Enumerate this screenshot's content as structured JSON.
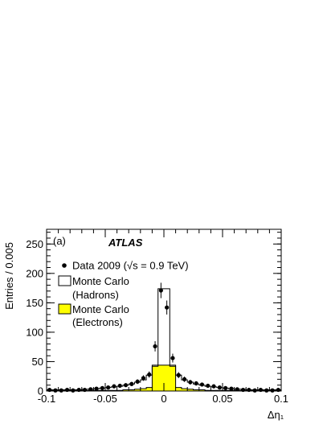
{
  "chart_data": {
    "type": "histogram",
    "panel_label": "(a)",
    "experiment_label": "ATLAS",
    "xlabel": "Δη₁",
    "ylabel": "Entries / 0.005",
    "xlim": [
      -0.1,
      0.1
    ],
    "ylim": [
      0,
      275
    ],
    "xticks": [
      -0.1,
      -0.05,
      0,
      0.05,
      0.1
    ],
    "xtick_labels": [
      "-0.1",
      "-0.05",
      "0",
      "0.05",
      "0.1"
    ],
    "yticks": [
      0,
      50,
      100,
      150,
      200,
      250
    ],
    "ytick_labels": [
      "0",
      "50",
      "100",
      "150",
      "200",
      "250"
    ],
    "legend": {
      "data": "Data 2009 (√s = 0.9 TeV)",
      "hadrons_line1": "Monte Carlo",
      "hadrons_line2": "(Hadrons)",
      "electrons_line1": "Monte Carlo",
      "electrons_line2": "(Electrons)"
    },
    "bin_edges": [
      -0.1,
      -0.095,
      -0.09,
      -0.085,
      -0.08,
      -0.075,
      -0.07,
      -0.065,
      -0.06,
      -0.055,
      -0.05,
      -0.045,
      -0.04,
      -0.035,
      -0.03,
      -0.025,
      -0.02,
      -0.015,
      -0.01,
      -0.005,
      0.0,
      0.005,
      0.01,
      0.015,
      0.02,
      0.025,
      0.03,
      0.035,
      0.04,
      0.045,
      0.05,
      0.055,
      0.06,
      0.065,
      0.07,
      0.075,
      0.08,
      0.085,
      0.09,
      0.095,
      0.1
    ],
    "series": [
      {
        "name": "Monte Carlo (Hadrons)",
        "style": "step",
        "color": "#000000",
        "values": [
          2,
          2,
          2,
          2,
          2,
          2,
          3,
          3,
          4,
          5,
          6,
          7,
          8,
          10,
          12,
          15,
          19,
          27,
          44,
          174,
          174,
          44,
          27,
          19,
          15,
          12,
          10,
          8,
          7,
          6,
          5,
          4,
          3,
          3,
          2,
          2,
          2,
          2,
          2,
          2
        ]
      },
      {
        "name": "Monte Carlo (Electrons)",
        "style": "filled",
        "color": "#ffff00",
        "values": [
          1,
          1,
          1,
          1,
          1,
          1,
          1,
          1,
          1,
          1,
          1,
          1,
          1,
          2,
          2,
          3,
          4,
          6,
          42,
          44,
          44,
          42,
          6,
          4,
          3,
          2,
          2,
          1,
          1,
          1,
          1,
          1,
          1,
          1,
          1,
          1,
          1,
          1,
          1,
          1
        ]
      },
      {
        "name": "Data 2009",
        "style": "points",
        "color": "#000000",
        "x": [
          -0.0975,
          -0.0925,
          -0.0875,
          -0.0825,
          -0.0775,
          -0.0725,
          -0.0675,
          -0.0625,
          -0.0575,
          -0.0525,
          -0.0475,
          -0.0425,
          -0.0375,
          -0.0325,
          -0.0275,
          -0.0225,
          -0.0175,
          -0.0125,
          -0.0075,
          -0.0025,
          0.0025,
          0.0075,
          0.0125,
          0.0175,
          0.0225,
          0.0275,
          0.0325,
          0.0375,
          0.0425,
          0.0475,
          0.0525,
          0.0575,
          0.0625,
          0.0675,
          0.0725,
          0.0775,
          0.0825,
          0.0875,
          0.0925,
          0.0975
        ],
        "y": [
          2,
          1,
          1,
          2,
          1,
          2,
          2,
          3,
          4,
          5,
          6,
          8,
          9,
          10,
          12,
          16,
          22,
          28,
          76,
          171,
          142,
          56,
          27,
          20,
          15,
          13,
          11,
          9,
          8,
          6,
          5,
          4,
          3,
          2,
          2,
          1,
          2,
          1,
          1,
          2
        ],
        "err": [
          1.4,
          1,
          1,
          1.4,
          1,
          1.4,
          1.4,
          1.7,
          2,
          2.2,
          2.4,
          2.8,
          3,
          3.2,
          3.5,
          4,
          4.7,
          5.3,
          8.7,
          13.1,
          11.9,
          7.5,
          5.2,
          4.5,
          3.9,
          3.6,
          3.3,
          3,
          2.8,
          2.4,
          2.2,
          2,
          1.7,
          1.4,
          1.4,
          1,
          1.4,
          1,
          1,
          1.4
        ]
      }
    ]
  }
}
